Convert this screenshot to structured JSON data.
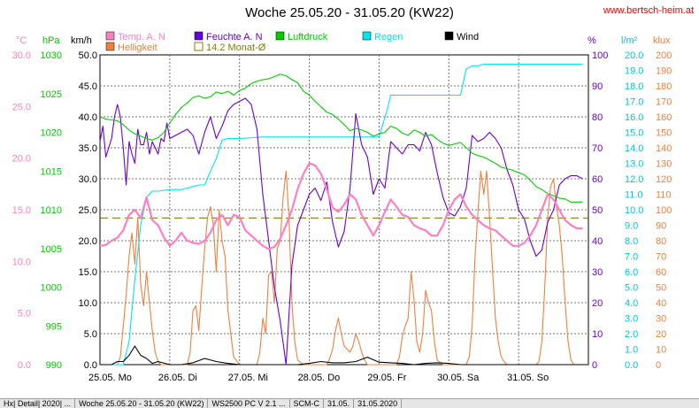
{
  "header": {
    "title": "Woche 25.05.20 - 31.05.20 (KW22)",
    "site": "www.bertsch-heim.at"
  },
  "axes": {
    "temp_unit": "°C",
    "pressure_unit": "hPa",
    "wind_unit": "km/h",
    "humidity_unit": "%",
    "rain_unit": "l/m²",
    "light_unit": "klux",
    "temp_ticks": [
      "0.0",
      "5.0",
      "10.0",
      "15.0",
      "20.0",
      "25.0",
      "30.0"
    ],
    "pressure_ticks": [
      "990",
      "995",
      "1000",
      "1005",
      "1010",
      "1015",
      "1020",
      "1025",
      "1030"
    ],
    "wind_ticks": [
      "0.0",
      "5.0",
      "10.0",
      "15.0",
      "20.0",
      "25.0",
      "30.0",
      "35.0",
      "40.0",
      "45.0",
      "50.0"
    ],
    "humidity_ticks": [
      "0",
      "10",
      "20",
      "30",
      "40",
      "50",
      "60",
      "70",
      "80",
      "90",
      "100"
    ],
    "rain_ticks": [
      "0.0",
      "1.0",
      "2.0",
      "3.0",
      "4.0",
      "5.0",
      "6.0",
      "7.0",
      "8.0",
      "9.0",
      "10.0",
      "11.0",
      "12.0",
      "13.0",
      "14.0",
      "15.0",
      "16.0",
      "17.0",
      "18.0",
      "19.0",
      "20.0"
    ],
    "light_ticks": [
      "0",
      "10",
      "20",
      "30",
      "40",
      "50",
      "60",
      "70",
      "80",
      "90",
      "100",
      "110",
      "120",
      "130",
      "140",
      "150",
      "160",
      "170",
      "180",
      "190",
      "200"
    ],
    "day_labels": [
      "25.05.  Mo",
      "26.05.  Di",
      "27.05.  Mi",
      "28.05.  Do",
      "29.05.  Fr",
      "30.05.  Sa",
      "31.05.  So"
    ]
  },
  "legend": [
    {
      "label": "Temp. A. N",
      "color": "#ff80c0",
      "type": "box"
    },
    {
      "label": "Feuchte A. N",
      "color": "#6a00d8",
      "type": "box"
    },
    {
      "label": "Luftdruck",
      "color": "#00cc00",
      "type": "box"
    },
    {
      "label": "Regen",
      "color": "#00e5ee",
      "type": "box"
    },
    {
      "label": "Wind",
      "color": "#000000",
      "type": "box"
    },
    {
      "label": "Helligkeit",
      "color": "#f08040",
      "type": "box"
    },
    {
      "label": "14.2 Monat-Ø",
      "color": "#808000",
      "type": "open"
    }
  ],
  "statusbar": [
    "Hx| Detail| 2020| ...",
    "Woche 25.05.20 - 31.05.20 (KW22)",
    "WS2500 PC V 2.1 ...",
    "SCM-C",
    "31.05.",
    "31.05.2020"
  ],
  "chart_data": {
    "type": "line",
    "x_unit": "hours since 25.05.20 00:00",
    "xlim": [
      0,
      168
    ],
    "monthly_avg_temp": 14.2,
    "series": [
      {
        "name": "Temp. A. N",
        "axis": "°C",
        "color": "#ff80c0",
        "x": [
          0,
          2,
          4,
          6,
          8,
          10,
          12,
          14,
          16,
          18,
          20,
          22,
          24,
          26,
          28,
          30,
          32,
          34,
          36,
          38,
          40,
          42,
          44,
          46,
          48,
          50,
          52,
          54,
          56,
          58,
          60,
          62,
          64,
          66,
          68,
          70,
          72,
          74,
          76,
          78,
          80,
          82,
          84,
          86,
          88,
          90,
          92,
          94,
          96,
          98,
          100,
          102,
          104,
          106,
          108,
          110,
          112,
          114,
          116,
          118,
          120,
          122,
          124,
          126,
          128,
          130,
          132,
          134,
          136,
          138,
          140,
          142,
          144,
          146,
          148,
          150,
          152,
          154,
          156,
          158,
          160,
          162,
          164,
          166
        ],
        "y": [
          11.5,
          11.6,
          12.0,
          12.3,
          13.0,
          14.5,
          15.0,
          14.2,
          16.2,
          14.0,
          13.5,
          12.3,
          11.5,
          12.0,
          12.8,
          12.0,
          11.8,
          11.7,
          12.0,
          12.8,
          14.0,
          14.5,
          13.5,
          14.5,
          14.3,
          13.0,
          12.5,
          12.0,
          11.5,
          11.2,
          11.4,
          12.2,
          13.5,
          15.0,
          17.0,
          18.5,
          19.5,
          19.3,
          18.5,
          17.0,
          15.2,
          14.8,
          15.5,
          16.5,
          16.0,
          14.5,
          13.5,
          12.5,
          13.5,
          14.8,
          16.0,
          15.3,
          14.5,
          14.3,
          13.5,
          13.2,
          13.0,
          12.5,
          12.5,
          13.5,
          15.0,
          16.0,
          16.5,
          15.3,
          14.5,
          14.0,
          13.5,
          13.2,
          13.0,
          12.5,
          12.0,
          11.5,
          11.5,
          11.8,
          12.5,
          13.5,
          15.0,
          16.5,
          16.0,
          15.0,
          14.0,
          13.5,
          13.2,
          13.2
        ]
      },
      {
        "name": "Feuchte A. N",
        "axis": "%",
        "color": "#6a00d8",
        "x": [
          0,
          1,
          2,
          3,
          4,
          5,
          6,
          7,
          8,
          9,
          10,
          11,
          12,
          13,
          14,
          15,
          16,
          17,
          18,
          19,
          20,
          21,
          22,
          23,
          24,
          26,
          28,
          30,
          32,
          34,
          36,
          38,
          40,
          42,
          44,
          46,
          48,
          50,
          52,
          54,
          56,
          58,
          60,
          62,
          64,
          66,
          68,
          70,
          72,
          74,
          76,
          78,
          80,
          82,
          84,
          86,
          88,
          90,
          92,
          94,
          96,
          98,
          100,
          102,
          104,
          106,
          108,
          110,
          112,
          114,
          116,
          118,
          120,
          122,
          124,
          126,
          128,
          130,
          132,
          134,
          136,
          138,
          140,
          142,
          144,
          146,
          148,
          150,
          152,
          154,
          156,
          158,
          160,
          162,
          164,
          166
        ],
        "y": [
          72,
          77,
          67,
          70,
          73,
          80,
          84,
          80,
          70,
          58,
          72,
          68,
          65,
          76,
          71,
          71,
          75,
          68,
          72,
          70,
          68,
          73,
          72,
          78,
          73,
          74,
          75,
          76,
          74,
          68,
          75,
          80,
          73,
          77,
          82,
          84,
          85,
          86,
          84,
          76,
          55,
          40,
          25,
          14,
          0,
          32,
          45,
          50,
          55,
          57,
          53,
          59,
          46,
          38,
          43,
          57,
          81,
          71,
          67,
          55,
          60,
          57,
          72,
          70,
          68,
          71,
          71,
          69,
          75,
          71,
          62,
          54,
          49,
          48,
          51,
          57,
          74,
          72,
          73,
          75,
          73,
          70,
          63,
          58,
          50,
          47,
          40,
          35,
          37,
          46,
          50,
          58,
          60,
          61,
          61,
          60
        ]
      },
      {
        "name": "Luftdruck",
        "axis": "hPa",
        "color": "#00cc00",
        "x": [
          0,
          2,
          4,
          6,
          8,
          10,
          12,
          14,
          16,
          18,
          20,
          22,
          24,
          26,
          28,
          30,
          32,
          34,
          36,
          38,
          40,
          42,
          44,
          46,
          48,
          50,
          52,
          54,
          56,
          58,
          60,
          62,
          64,
          66,
          68,
          70,
          72,
          74,
          76,
          78,
          80,
          82,
          84,
          86,
          88,
          90,
          92,
          94,
          96,
          98,
          100,
          102,
          104,
          106,
          108,
          110,
          112,
          114,
          116,
          118,
          120,
          122,
          124,
          126,
          128,
          130,
          132,
          134,
          136,
          138,
          140,
          142,
          144,
          146,
          148,
          150,
          152,
          154,
          156,
          158,
          160,
          162,
          164,
          166
        ],
        "y": [
          1022.0,
          1021.7,
          1021.6,
          1021.5,
          1021.0,
          1020.3,
          1019.8,
          1019.5,
          1019.2,
          1019.0,
          1019.3,
          1020.0,
          1021.2,
          1022.3,
          1023.2,
          1023.8,
          1024.5,
          1024.7,
          1024.4,
          1024.6,
          1025.2,
          1025.0,
          1025.3,
          1024.8,
          1025.4,
          1025.7,
          1026.3,
          1026.6,
          1026.8,
          1026.9,
          1027.2,
          1027.5,
          1027.3,
          1026.8,
          1026.4,
          1025.3,
          1024.8,
          1024.0,
          1023.3,
          1022.6,
          1022.3,
          1021.7,
          1021.0,
          1020.2,
          1020.5,
          1020.3,
          1020.0,
          1019.5,
          1019.8,
          1020.0,
          1020.8,
          1020.5,
          1019.9,
          1019.6,
          1020.3,
          1020.0,
          1019.5,
          1019.7,
          1019.1,
          1018.6,
          1018.3,
          1018.5,
          1018.7,
          1018.0,
          1017.3,
          1017.0,
          1016.8,
          1016.4,
          1016.0,
          1015.5,
          1015.3,
          1015.1,
          1014.8,
          1014.5,
          1013.8,
          1013.0,
          1012.6,
          1012.1,
          1011.8,
          1011.5,
          1011.4,
          1011.0,
          1011.0,
          1011.0
        ]
      },
      {
        "name": "Regen",
        "axis": "l/m²",
        "color": "#00e5ee",
        "x": [
          0,
          8,
          10,
          12,
          14,
          16,
          18,
          20,
          24,
          28,
          30,
          32,
          34,
          36,
          38,
          40,
          42,
          44,
          48,
          56,
          60,
          64,
          72,
          80,
          88,
          96,
          99,
          100,
          102,
          104,
          106,
          112,
          120,
          124,
          126,
          128,
          130,
          132,
          134,
          166
        ],
        "y": [
          0.0,
          0.0,
          1.5,
          5.5,
          9.0,
          10.8,
          11.2,
          11.2,
          11.3,
          11.3,
          11.4,
          11.5,
          11.6,
          11.6,
          12.5,
          13.3,
          14.5,
          14.6,
          14.6,
          14.7,
          14.7,
          14.7,
          14.7,
          14.7,
          14.7,
          14.7,
          16.6,
          17.4,
          17.4,
          17.4,
          17.4,
          17.4,
          17.4,
          17.4,
          19.1,
          19.3,
          19.3,
          19.4,
          19.4,
          19.4
        ]
      },
      {
        "name": "Wind",
        "axis": "km/h",
        "color": "#000000",
        "x": [
          0,
          4,
          6,
          8,
          10,
          12,
          14,
          16,
          18,
          20,
          24,
          28,
          32,
          36,
          40,
          44,
          48,
          52,
          56,
          60,
          64,
          68,
          72,
          76,
          80,
          84,
          88,
          92,
          96,
          100,
          104,
          108,
          112,
          116,
          120,
          124,
          128,
          132,
          136,
          140,
          144,
          148,
          152,
          156,
          160,
          164,
          166
        ],
        "y": [
          0,
          0,
          0.5,
          0.5,
          1.5,
          3.0,
          1.5,
          1.0,
          0.2,
          0.5,
          0,
          0,
          0.3,
          1.0,
          0.5,
          0.2,
          0,
          0,
          0,
          0,
          0,
          0,
          0.2,
          0.5,
          0.3,
          0.3,
          0.5,
          1.2,
          0.4,
          0.3,
          0.2,
          0,
          0.2,
          0.3,
          0.2,
          0,
          0,
          0,
          0,
          0,
          0,
          0,
          0,
          0,
          0,
          0,
          0
        ]
      },
      {
        "name": "Helligkeit",
        "axis": "klux",
        "color": "#f08040",
        "x": [
          0,
          6,
          7,
          8,
          9,
          10,
          11,
          12,
          13,
          14,
          15,
          16,
          17,
          18,
          19,
          20,
          21,
          22,
          24,
          30,
          31,
          32,
          33,
          34,
          35,
          36,
          37,
          38,
          39,
          40,
          41,
          42,
          43,
          44,
          46,
          48,
          54,
          55,
          56,
          57,
          58,
          59,
          60,
          61,
          62,
          63,
          64,
          65,
          66,
          67,
          68,
          70,
          72,
          78,
          79,
          80,
          81,
          82,
          83,
          84,
          85,
          86,
          87,
          88,
          89,
          90,
          91,
          92,
          94,
          96,
          102,
          103,
          104,
          105,
          106,
          107,
          108,
          109,
          110,
          111,
          112,
          113,
          114,
          115,
          116,
          118,
          120,
          126,
          127,
          128,
          129,
          130,
          131,
          132,
          133,
          134,
          135,
          136,
          137,
          138,
          139,
          140,
          142,
          144,
          150,
          151,
          152,
          153,
          154,
          155,
          156,
          157,
          158,
          159,
          160,
          161,
          162,
          163,
          164,
          166
        ],
        "y": [
          0,
          0,
          5,
          25,
          45,
          70,
          85,
          65,
          95,
          52,
          38,
          60,
          40,
          22,
          8,
          2,
          0,
          0,
          0,
          0,
          8,
          35,
          38,
          22,
          50,
          75,
          95,
          102,
          90,
          60,
          100,
          80,
          70,
          35,
          5,
          0,
          0,
          8,
          30,
          20,
          58,
          60,
          40,
          75,
          80,
          108,
          125,
          95,
          40,
          15,
          3,
          0,
          0,
          0,
          4,
          10,
          22,
          30,
          20,
          12,
          10,
          8,
          12,
          20,
          15,
          8,
          3,
          0,
          0,
          0,
          0,
          5,
          18,
          25,
          30,
          60,
          42,
          15,
          8,
          20,
          48,
          40,
          35,
          15,
          3,
          0,
          0,
          0,
          5,
          25,
          70,
          98,
          125,
          110,
          125,
          95,
          62,
          30,
          15,
          5,
          2,
          0,
          0,
          0,
          0,
          2,
          15,
          50,
          95,
          115,
          120,
          102,
          90,
          70,
          40,
          15,
          3,
          0,
          0,
          0
        ]
      }
    ]
  }
}
